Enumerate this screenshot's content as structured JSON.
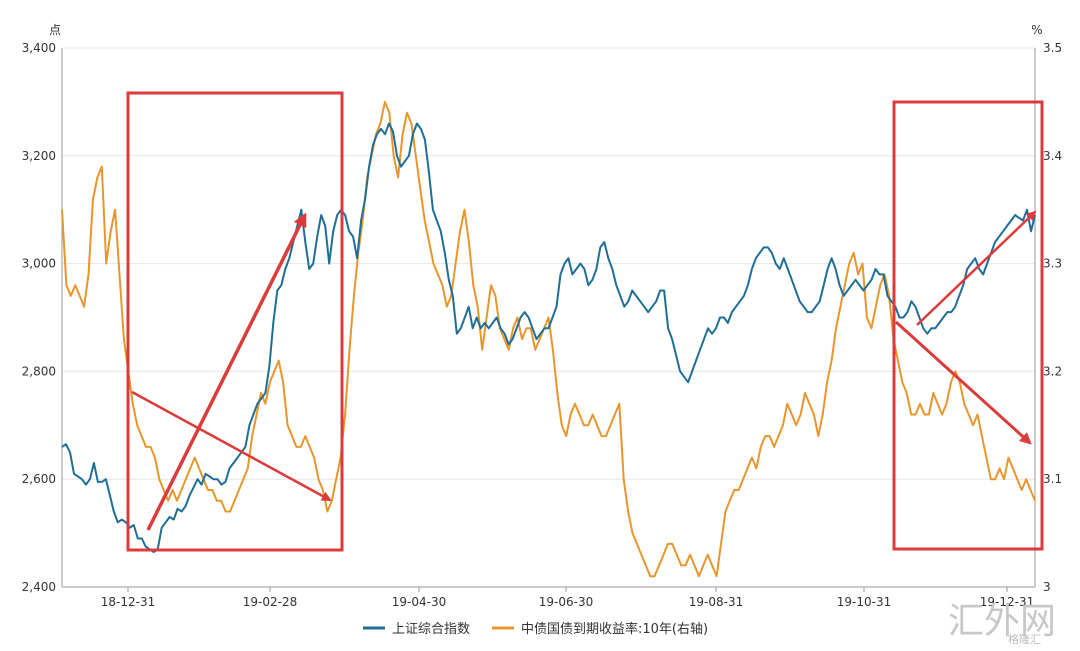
{
  "chart_data": {
    "type": "line",
    "left_unit": "点",
    "right_unit": "%",
    "left_axis": {
      "ylim": [
        2400,
        3400
      ],
      "ticks": [
        "2,400",
        "2,600",
        "2,800",
        "3,000",
        "3,200",
        "3,400"
      ]
    },
    "right_axis": {
      "ylim": [
        3.0,
        3.5
      ],
      "ticks": [
        "3",
        "3.1",
        "3.2",
        "3.3",
        "3.4",
        "3.5"
      ]
    },
    "x_ticks": [
      "18-12-31",
      "19-02-28",
      "19-04-30",
      "19-06-30",
      "19-08-31",
      "19-10-31",
      "19-12-31"
    ],
    "grid": true,
    "legend_position": "bottom",
    "colors": {
      "sse": "#1f6e96",
      "bond": "#e8962c",
      "annotation": "#dd3b3b"
    },
    "series": [
      {
        "name": "上证综合指数",
        "axis": "left",
        "values": [
          2660,
          2665,
          2650,
          2610,
          2605,
          2600,
          2590,
          2600,
          2630,
          2595,
          2595,
          2600,
          2570,
          2540,
          2520,
          2525,
          2520,
          2510,
          2515,
          2490,
          2490,
          2475,
          2470,
          2465,
          2470,
          2510,
          2520,
          2530,
          2525,
          2545,
          2540,
          2550,
          2570,
          2585,
          2600,
          2590,
          2610,
          2605,
          2600,
          2600,
          2590,
          2595,
          2620,
          2630,
          2640,
          2650,
          2660,
          2700,
          2720,
          2740,
          2750,
          2760,
          2810,
          2890,
          2950,
          2960,
          2990,
          3010,
          3040,
          3070,
          3100,
          3040,
          2990,
          3000,
          3050,
          3090,
          3070,
          3000,
          3060,
          3090,
          3100,
          3090,
          3060,
          3050,
          3010,
          3080,
          3120,
          3180,
          3220,
          3240,
          3250,
          3240,
          3260,
          3245,
          3200,
          3180,
          3190,
          3200,
          3240,
          3260,
          3250,
          3230,
          3170,
          3100,
          3080,
          3060,
          3020,
          2970,
          2940,
          2870,
          2880,
          2900,
          2920,
          2880,
          2900,
          2880,
          2890,
          2880,
          2890,
          2900,
          2880,
          2870,
          2850,
          2860,
          2880,
          2900,
          2910,
          2900,
          2880,
          2860,
          2870,
          2880,
          2880,
          2900,
          2920,
          2980,
          3000,
          3010,
          2980,
          2990,
          3000,
          2990,
          2960,
          2970,
          2990,
          3030,
          3040,
          3010,
          2990,
          2960,
          2940,
          2920,
          2930,
          2950,
          2940,
          2930,
          2920,
          2910,
          2920,
          2930,
          2950,
          2950,
          2880,
          2860,
          2830,
          2800,
          2790,
          2780,
          2800,
          2820,
          2840,
          2860,
          2880,
          2870,
          2880,
          2900,
          2900,
          2890,
          2910,
          2920,
          2930,
          2940,
          2960,
          2990,
          3010,
          3020,
          3030,
          3030,
          3020,
          3000,
          2990,
          3010,
          2990,
          2970,
          2950,
          2930,
          2920,
          2910,
          2910,
          2920,
          2930,
          2960,
          2990,
          3010,
          2990,
          2960,
          2940,
          2950,
          2960,
          2970,
          2960,
          2950,
          2960,
          2970,
          2990,
          2980,
          2980,
          2940,
          2930,
          2920,
          2900,
          2900,
          2910,
          2930,
          2920,
          2900,
          2880,
          2870,
          2880,
          2880,
          2890,
          2900,
          2910,
          2910,
          2920,
          2940,
          2960,
          2990,
          3000,
          3010,
          2990,
          2980,
          3000,
          3020,
          3040,
          3050,
          3060,
          3070,
          3080,
          3090,
          3085,
          3080,
          3100,
          3060,
          3090
        ]
      },
      {
        "name": "中债国债到期收益率:10年(右轴)",
        "axis": "right",
        "values": [
          3.35,
          3.28,
          3.27,
          3.28,
          3.27,
          3.26,
          3.29,
          3.36,
          3.38,
          3.39,
          3.3,
          3.33,
          3.35,
          3.29,
          3.23,
          3.2,
          3.17,
          3.15,
          3.14,
          3.13,
          3.13,
          3.12,
          3.1,
          3.09,
          3.08,
          3.09,
          3.08,
          3.09,
          3.1,
          3.11,
          3.12,
          3.11,
          3.1,
          3.09,
          3.09,
          3.08,
          3.08,
          3.07,
          3.07,
          3.08,
          3.09,
          3.1,
          3.11,
          3.14,
          3.16,
          3.18,
          3.17,
          3.19,
          3.2,
          3.21,
          3.19,
          3.15,
          3.14,
          3.13,
          3.13,
          3.14,
          3.13,
          3.12,
          3.1,
          3.09,
          3.07,
          3.08,
          3.1,
          3.12,
          3.16,
          3.22,
          3.27,
          3.31,
          3.34,
          3.38,
          3.4,
          3.42,
          3.43,
          3.45,
          3.44,
          3.4,
          3.38,
          3.42,
          3.44,
          3.43,
          3.4,
          3.37,
          3.34,
          3.32,
          3.3,
          3.29,
          3.28,
          3.26,
          3.27,
          3.3,
          3.33,
          3.35,
          3.32,
          3.28,
          3.26,
          3.22,
          3.25,
          3.28,
          3.27,
          3.24,
          3.23,
          3.22,
          3.24,
          3.25,
          3.23,
          3.24,
          3.24,
          3.22,
          3.23,
          3.24,
          3.25,
          3.22,
          3.18,
          3.15,
          3.14,
          3.16,
          3.17,
          3.16,
          3.15,
          3.15,
          3.16,
          3.15,
          3.14,
          3.14,
          3.15,
          3.16,
          3.17,
          3.1,
          3.07,
          3.05,
          3.04,
          3.03,
          3.02,
          3.01,
          3.01,
          3.02,
          3.03,
          3.04,
          3.04,
          3.03,
          3.02,
          3.02,
          3.03,
          3.02,
          3.01,
          3.02,
          3.03,
          3.02,
          3.01,
          3.04,
          3.07,
          3.08,
          3.09,
          3.09,
          3.1,
          3.11,
          3.12,
          3.11,
          3.13,
          3.14,
          3.14,
          3.13,
          3.14,
          3.15,
          3.17,
          3.16,
          3.15,
          3.16,
          3.18,
          3.17,
          3.16,
          3.14,
          3.16,
          3.19,
          3.21,
          3.24,
          3.26,
          3.28,
          3.3,
          3.31,
          3.29,
          3.3,
          3.25,
          3.24,
          3.26,
          3.28,
          3.29,
          3.27,
          3.23,
          3.21,
          3.19,
          3.18,
          3.16,
          3.16,
          3.17,
          3.16,
          3.16,
          3.18,
          3.17,
          3.16,
          3.17,
          3.19,
          3.2,
          3.19,
          3.17,
          3.16,
          3.15,
          3.16,
          3.14,
          3.12,
          3.1,
          3.1,
          3.11,
          3.1,
          3.12,
          3.11,
          3.1,
          3.09,
          3.1,
          3.09,
          3.08
        ]
      }
    ]
  },
  "watermark": {
    "main": "汇外网",
    "sub": "格隆汇"
  }
}
